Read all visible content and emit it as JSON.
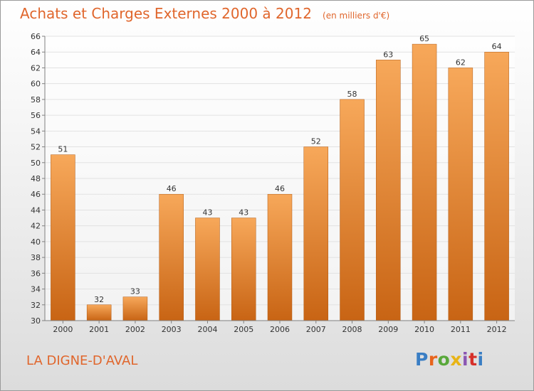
{
  "header": {
    "title": "Achats et Charges Externes 2000 à 2012",
    "unit": "(en milliers d'€)"
  },
  "footer": {
    "commune": "LA DIGNE-D'AVAL",
    "logo_text": "Proxiti",
    "logo_colors": [
      "#3a7ec4",
      "#e8641c",
      "#58a83a",
      "#e8b416",
      "#8a56b2",
      "#d6302a",
      "#3a7ec4"
    ]
  },
  "colors": {
    "bar_light": "#f7a85a",
    "bar_dark": "#c86414",
    "axis": "#808080",
    "grid": "#e2e2e2",
    "accent": "#e0662c",
    "label": "#333333"
  },
  "chart_data": {
    "type": "bar",
    "categories": [
      "2000",
      "2001",
      "2002",
      "2003",
      "2004",
      "2005",
      "2006",
      "2007",
      "2008",
      "2009",
      "2010",
      "2011",
      "2012"
    ],
    "values": [
      51,
      32,
      33,
      46,
      43,
      43,
      46,
      52,
      58,
      63,
      65,
      62,
      64
    ],
    "title": "Achats et Charges Externes 2000 à 2012",
    "xlabel": "",
    "ylabel": "",
    "ylim": [
      30,
      66
    ],
    "yticks": [
      30,
      32,
      34,
      36,
      38,
      40,
      42,
      44,
      46,
      48,
      50,
      52,
      54,
      56,
      58,
      60,
      62,
      64,
      66
    ],
    "grid": true,
    "data_labels": true
  }
}
